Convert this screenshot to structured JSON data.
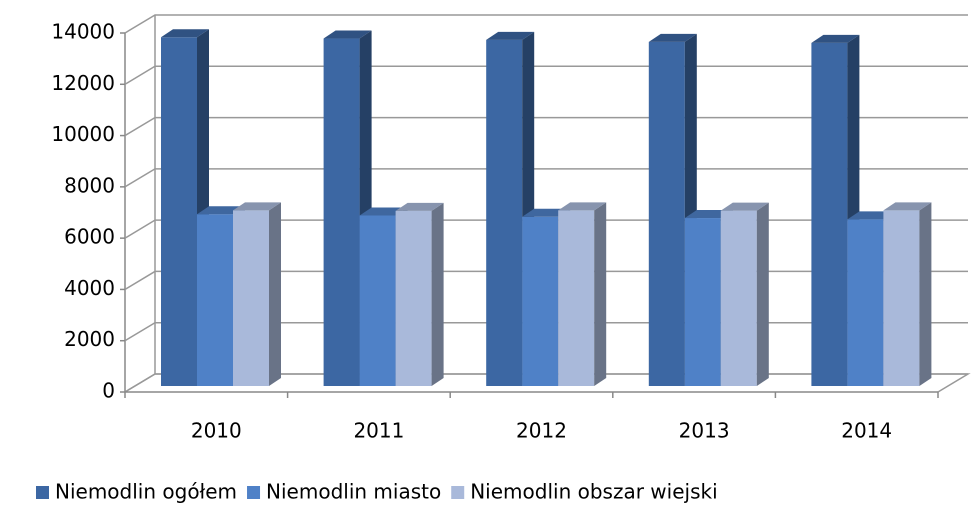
{
  "chart_data": {
    "type": "bar3d",
    "categories": [
      "2010",
      "2011",
      "2012",
      "2013",
      "2014"
    ],
    "series": [
      {
        "name": "Niemodlin  ogółem",
        "color": "#3c67a3",
        "values": [
          13600,
          13550,
          13500,
          13420,
          13380
        ]
      },
      {
        "name": "Niemodlin  miasto",
        "color": "#4f81c7",
        "values": [
          6700,
          6650,
          6600,
          6550,
          6500
        ]
      },
      {
        "name": "Niemodlin obszar wiejski",
        "color": "#a9b9da",
        "values": [
          6850,
          6830,
          6850,
          6840,
          6850
        ]
      }
    ],
    "ylim": [
      0,
      14000
    ],
    "yticks": [
      0,
      2000,
      4000,
      6000,
      8000,
      10000,
      12000,
      14000
    ],
    "grid": true,
    "legend": "bottom"
  }
}
